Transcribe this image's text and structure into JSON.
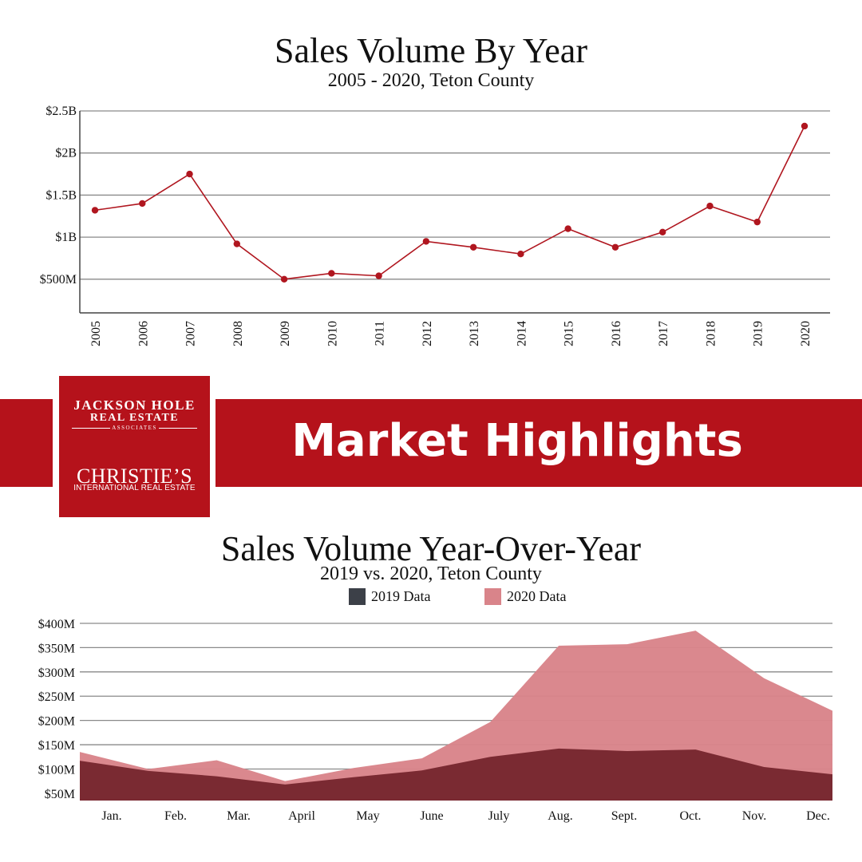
{
  "top_chart": {
    "title": "Sales Volume By Year",
    "subtitle": "2005 - 2020, Teton County"
  },
  "banner": {
    "logo_line1": "JACKSON HOLE",
    "logo_line2": "REAL ESTATE",
    "logo_line3": "ASSOCIATES",
    "logo_christies": "CHRISTIE’S",
    "logo_intl": "INTERNATIONAL REAL ESTATE",
    "title": "Market Highlights"
  },
  "bottom_chart": {
    "title": "Sales Volume Year-Over-Year",
    "subtitle": "2019 vs. 2020, Teton County",
    "legend_2019": "2019 Data",
    "legend_2020": "2020 Data"
  },
  "colors": {
    "brand_red": "#b5121b",
    "line_red": "#b0161f",
    "area_2019": "#7a2a32",
    "area_2019_dark": "#3c4048",
    "area_2020": "#d9848a"
  },
  "chart_data": [
    {
      "type": "line",
      "title": "Sales Volume By Year",
      "subtitle": "2005 - 2020, Teton County",
      "categories": [
        "2005",
        "2006",
        "2007",
        "2008",
        "2009",
        "2010",
        "2011",
        "2012",
        "2013",
        "2014",
        "2015",
        "2016",
        "2017",
        "2018",
        "2019",
        "2020"
      ],
      "series": [
        {
          "values": [
            1.32,
            1.4,
            1.75,
            0.92,
            0.5,
            0.57,
            0.54,
            0.95,
            0.88,
            0.8,
            1.1,
            0.88,
            1.06,
            1.37,
            1.18,
            2.32
          ]
        }
      ],
      "y_unit": "billions USD",
      "ylim": [
        0.1,
        2.5
      ],
      "yticks": [
        {
          "value": 0.5,
          "label": "$500M"
        },
        {
          "value": 1.0,
          "label": "$1B"
        },
        {
          "value": 1.5,
          "label": "$1.5B"
        },
        {
          "value": 2.0,
          "label": "$2B"
        },
        {
          "value": 2.5,
          "label": "$2.5B"
        }
      ],
      "grid": true
    },
    {
      "type": "area",
      "title": "Sales Volume Year-Over-Year",
      "subtitle": "2019 vs. 2020, Teton County",
      "categories": [
        "Jan.",
        "Feb.",
        "Mar.",
        "April",
        "May",
        "June",
        "July",
        "Aug.",
        "Sept.",
        "Oct.",
        "Nov.",
        "Dec."
      ],
      "series": [
        {
          "name": "2020 Data",
          "values": [
            135,
            100,
            118,
            75,
            102,
            122,
            197,
            354,
            357,
            385,
            287,
            220
          ]
        },
        {
          "name": "2019 Data",
          "values": [
            117,
            96,
            85,
            68,
            83,
            97,
            125,
            142,
            137,
            140,
            104,
            89
          ]
        }
      ],
      "y_unit": "millions USD",
      "ylim": [
        35,
        400
      ],
      "yticks": [
        {
          "value": 50,
          "label": "$50M"
        },
        {
          "value": 100,
          "label": "$100M"
        },
        {
          "value": 150,
          "label": "$150M"
        },
        {
          "value": 200,
          "label": "$200M"
        },
        {
          "value": 250,
          "label": "$250M"
        },
        {
          "value": 300,
          "label": "$300M"
        },
        {
          "value": 350,
          "label": "$350M"
        },
        {
          "value": 400,
          "label": "$400M"
        }
      ],
      "legend_position": "top-center",
      "grid": true
    }
  ]
}
